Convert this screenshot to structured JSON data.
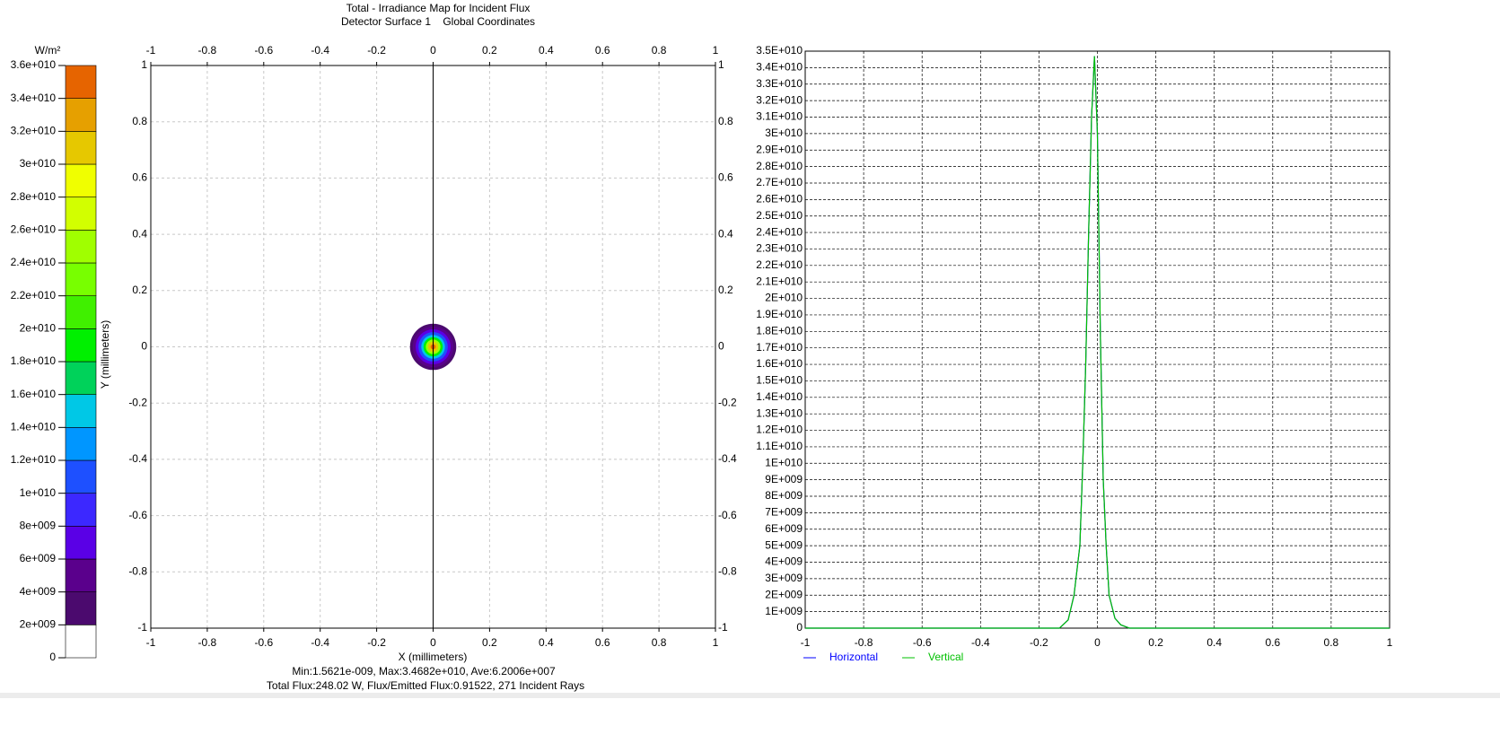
{
  "chart_data": [
    {
      "type": "heatmap",
      "title": "Total - Irradiance Map for Incident Flux",
      "subtitle": "Detector Surface 1    Global Coordinates",
      "xlabel": "X (millimeters)",
      "ylabel": "Y (millimeters)",
      "xlim": [
        -1,
        1
      ],
      "ylim": [
        -1,
        1
      ],
      "xticks": [
        -1,
        -0.8,
        -0.6,
        -0.4,
        -0.2,
        0,
        0.2,
        0.4,
        0.6,
        0.8,
        1
      ],
      "yticks": [
        -1,
        -0.8,
        -0.6,
        -0.4,
        -0.2,
        0,
        0.2,
        0.4,
        0.6,
        0.8,
        1
      ],
      "grid": true,
      "spot": {
        "x": 0,
        "y": 0,
        "radii": [
          0.082,
          0.072,
          0.062,
          0.052,
          0.042,
          0.034,
          0.026,
          0.018,
          0.009
        ],
        "values": [
          3000000000,
          5000000000,
          7000000000,
          11000000000,
          15000000000,
          19000000000,
          25000000000,
          31000000000,
          35000000000
        ]
      },
      "colorbar": {
        "label": "W/m²",
        "ticks": [
          {
            "value": 0,
            "label": "0"
          },
          {
            "value": 2000000000,
            "label": "2e+009"
          },
          {
            "value": 4000000000,
            "label": "4e+009"
          },
          {
            "value": 6000000000,
            "label": "6e+009"
          },
          {
            "value": 8000000000,
            "label": "8e+009"
          },
          {
            "value": 10000000000,
            "label": "1e+010"
          },
          {
            "value": 12000000000,
            "label": "1.2e+010"
          },
          {
            "value": 14000000000,
            "label": "1.4e+010"
          },
          {
            "value": 16000000000,
            "label": "1.6e+010"
          },
          {
            "value": 18000000000,
            "label": "1.8e+010"
          },
          {
            "value": 20000000000,
            "label": "2e+010"
          },
          {
            "value": 22000000000,
            "label": "2.2e+010"
          },
          {
            "value": 24000000000,
            "label": "2.4e+010"
          },
          {
            "value": 26000000000,
            "label": "2.6e+010"
          },
          {
            "value": 28000000000,
            "label": "2.8e+010"
          },
          {
            "value": 30000000000,
            "label": "3e+010"
          },
          {
            "value": 32000000000,
            "label": "3.2e+010"
          },
          {
            "value": 34000000000,
            "label": "3.4e+010"
          },
          {
            "value": 36000000000,
            "label": "3.6e+010"
          }
        ],
        "colors": [
          "#ffffff",
          "#4b0a6e",
          "#5a008c",
          "#5a00e6",
          "#3c28ff",
          "#1e50ff",
          "#0096ff",
          "#00c8e6",
          "#00d25a",
          "#00f000",
          "#40f000",
          "#78ff00",
          "#a0ff00",
          "#d2ff00",
          "#f0ff00",
          "#e6c800",
          "#e6a000",
          "#e66400"
        ]
      },
      "notes": [
        "Min:1.5621e-009, Max:3.4682e+010, Ave:6.2006e+007",
        "Total Flux:248.02 W, Flux/Emitted Flux:0.91522, 271 Incident Rays"
      ]
    },
    {
      "type": "line",
      "xlim": [
        -1,
        1
      ],
      "xticks": [
        -1,
        -0.8,
        -0.6,
        -0.4,
        -0.2,
        0,
        0.2,
        0.4,
        0.6,
        0.8,
        1
      ],
      "ylim": [
        0,
        35000000000
      ],
      "yticks": [
        {
          "value": 0,
          "label": "0"
        },
        {
          "value": 1000000000,
          "label": "1E+009"
        },
        {
          "value": 2000000000,
          "label": "2E+009"
        },
        {
          "value": 3000000000,
          "label": "3E+009"
        },
        {
          "value": 4000000000,
          "label": "4E+009"
        },
        {
          "value": 5000000000,
          "label": "5E+009"
        },
        {
          "value": 6000000000,
          "label": "6E+009"
        },
        {
          "value": 7000000000,
          "label": "7E+009"
        },
        {
          "value": 8000000000,
          "label": "8E+009"
        },
        {
          "value": 9000000000,
          "label": "9E+009"
        },
        {
          "value": 10000000000,
          "label": "1E+010"
        },
        {
          "value": 11000000000,
          "label": "1.1E+010"
        },
        {
          "value": 12000000000,
          "label": "1.2E+010"
        },
        {
          "value": 13000000000,
          "label": "1.3E+010"
        },
        {
          "value": 14000000000,
          "label": "1.4E+010"
        },
        {
          "value": 15000000000,
          "label": "1.5E+010"
        },
        {
          "value": 16000000000,
          "label": "1.6E+010"
        },
        {
          "value": 17000000000,
          "label": "1.7E+010"
        },
        {
          "value": 18000000000,
          "label": "1.8E+010"
        },
        {
          "value": 19000000000,
          "label": "1.9E+010"
        },
        {
          "value": 20000000000,
          "label": "2E+010"
        },
        {
          "value": 21000000000,
          "label": "2.1E+010"
        },
        {
          "value": 22000000000,
          "label": "2.2E+010"
        },
        {
          "value": 23000000000,
          "label": "2.3E+010"
        },
        {
          "value": 24000000000,
          "label": "2.4E+010"
        },
        {
          "value": 25000000000,
          "label": "2.5E+010"
        },
        {
          "value": 26000000000,
          "label": "2.6E+010"
        },
        {
          "value": 27000000000,
          "label": "2.7E+010"
        },
        {
          "value": 28000000000,
          "label": "2.8E+010"
        },
        {
          "value": 29000000000,
          "label": "2.9E+010"
        },
        {
          "value": 30000000000,
          "label": "3E+010"
        },
        {
          "value": 31000000000,
          "label": "3.1E+010"
        },
        {
          "value": 32000000000,
          "label": "3.2E+010"
        },
        {
          "value": 33000000000,
          "label": "3.3E+010"
        },
        {
          "value": 34000000000,
          "label": "3.4E+010"
        },
        {
          "value": 35000000000,
          "label": "3.5E+010"
        }
      ],
      "grid": true,
      "x": [
        -1,
        -0.13,
        -0.1,
        -0.08,
        -0.06,
        -0.05,
        -0.04,
        -0.03,
        -0.02,
        -0.01,
        0,
        0.01,
        0.02,
        0.03,
        0.04,
        0.06,
        0.08,
        0.11,
        1
      ],
      "series": [
        {
          "name": "Horizontal",
          "color": "#0000ff",
          "values": [
            0,
            0,
            500000000,
            2000000000,
            5000000000,
            10000000000,
            16000000000,
            24000000000,
            31000000000,
            34700000000,
            30000000000,
            18000000000,
            9000000000,
            5000000000,
            2000000000,
            600000000,
            200000000,
            0,
            0
          ]
        },
        {
          "name": "Vertical",
          "color": "#00c000",
          "values": [
            0,
            0,
            500000000,
            2000000000,
            5000000000,
            10000000000,
            16000000000,
            24000000000,
            31000000000,
            34700000000,
            30000000000,
            18000000000,
            9000000000,
            5000000000,
            2000000000,
            600000000,
            200000000,
            0,
            0
          ]
        }
      ]
    }
  ]
}
